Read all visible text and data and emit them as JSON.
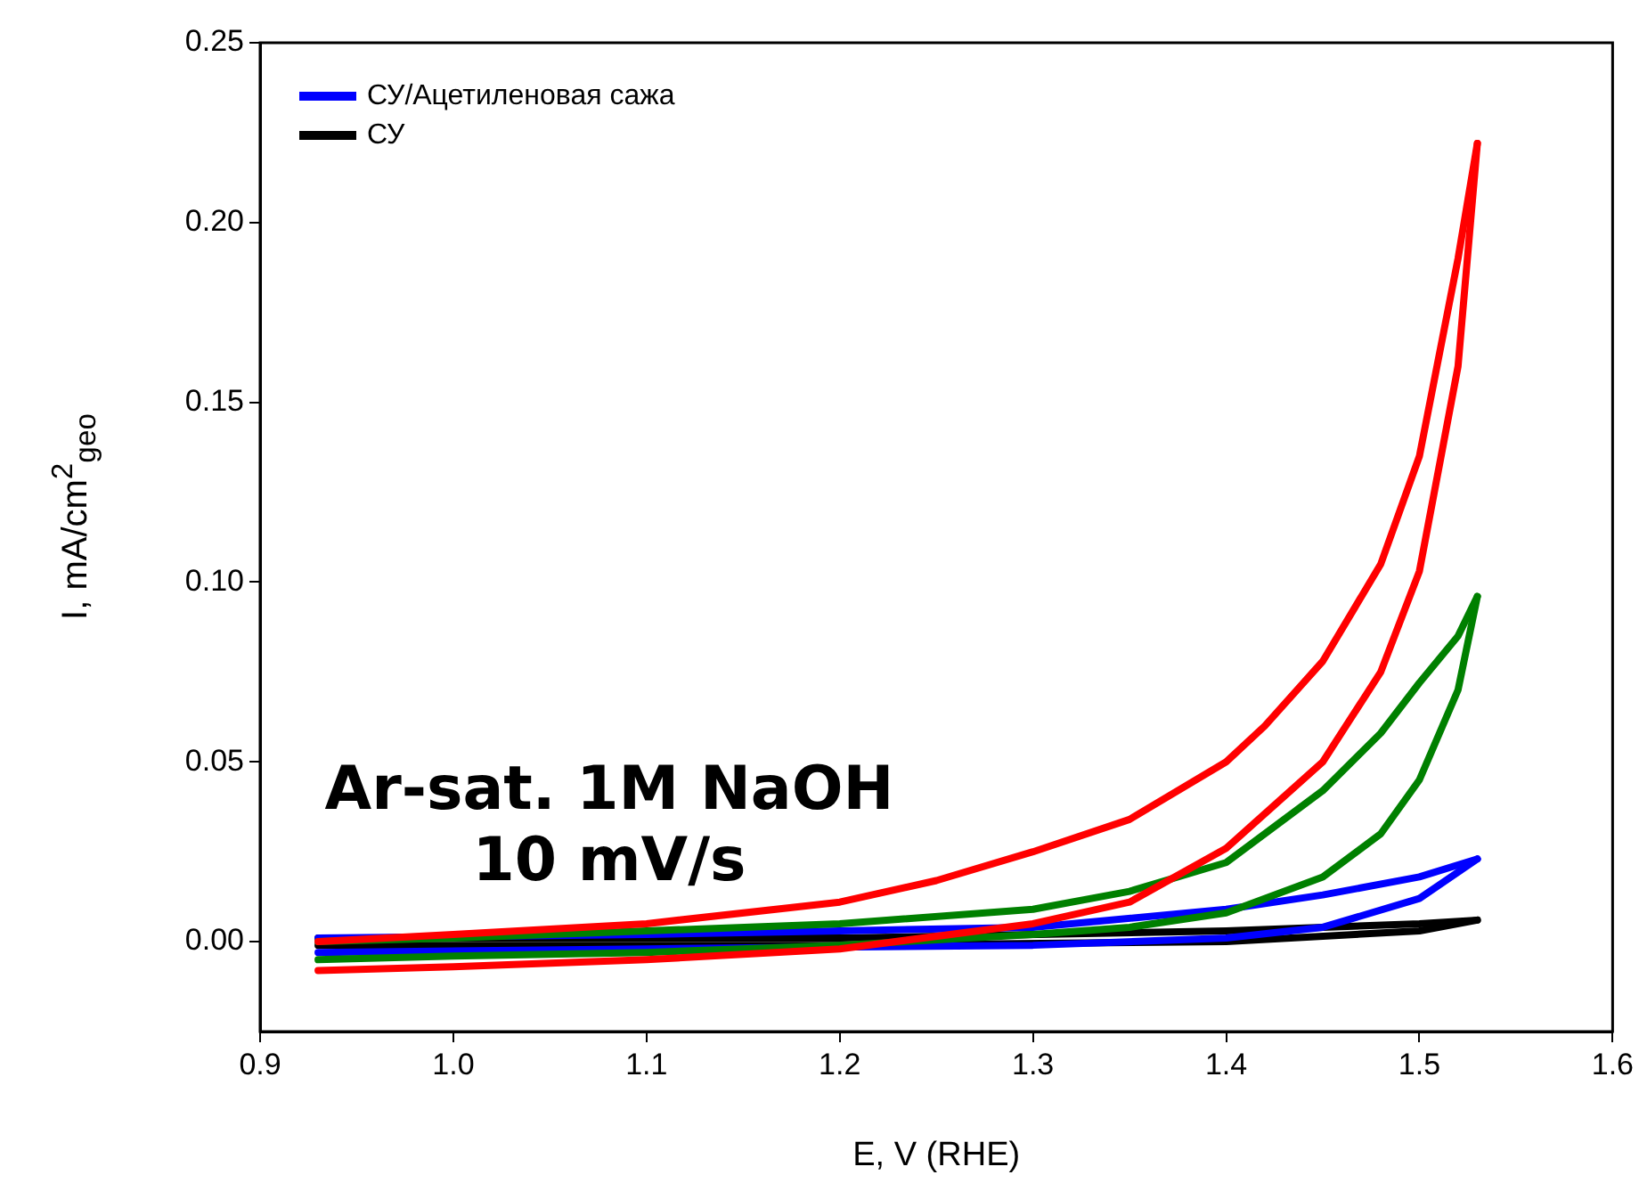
{
  "chart_data": {
    "type": "line",
    "xlabel": "E, V (RHE)",
    "ylabel": "I, mA/cm$^{2}$$_{geo}$",
    "xlim": [
      0.9,
      1.6
    ],
    "xticks": [
      0.9,
      {
        "value": 1,
        "label": "1.0"
      },
      1.1,
      1.2,
      1.3,
      1.4,
      1.5,
      1.6
    ],
    "ylim": [
      -0.025,
      0.25
    ],
    "yticks": [
      {
        "value": 0,
        "label": "0.00"
      },
      {
        "value": 0.05,
        "label": "0.05"
      },
      {
        "value": 0.1,
        "label": "0.10"
      },
      {
        "value": 0.15,
        "label": "0.15"
      },
      {
        "value": 0.2,
        "label": "0.20"
      },
      {
        "value": 0.25,
        "label": "0.25"
      }
    ],
    "grid": false,
    "legend": "top left",
    "marker": "none",
    "line_style": "solid",
    "annotations": [
      "Ar-sat. 1M NaOH",
      "10 mV/s"
    ],
    "series": [
      {
        "color": "#ff0000",
        "x": [
          0.93,
          1.0,
          1.1,
          1.2,
          1.3,
          1.35,
          1.4,
          1.45,
          1.48,
          1.5,
          1.52,
          1.53
        ],
        "values": [
          -0.008,
          -0.007,
          -0.005,
          -0.002,
          0.005,
          0.011,
          0.026,
          0.05,
          0.075,
          0.103,
          0.16,
          0.222
        ]
      },
      {
        "color": "#ff0000",
        "x": [
          0.93,
          1.0,
          1.1,
          1.2,
          1.25,
          1.3,
          1.35,
          1.4,
          1.42,
          1.45,
          1.48,
          1.5,
          1.52,
          1.53
        ],
        "values": [
          0.0,
          0.002,
          0.005,
          0.011,
          0.017,
          0.025,
          0.034,
          0.05,
          0.06,
          0.078,
          0.105,
          0.135,
          0.19,
          0.222
        ]
      },
      {
        "color": "#008000",
        "x": [
          0.93,
          1.0,
          1.1,
          1.2,
          1.3,
          1.35,
          1.4,
          1.45,
          1.48,
          1.5,
          1.52,
          1.53
        ],
        "values": [
          -0.005,
          -0.004,
          -0.003,
          -0.001,
          0.002,
          0.004,
          0.008,
          0.018,
          0.03,
          0.045,
          0.07,
          0.096
        ]
      },
      {
        "color": "#008000",
        "x": [
          0.93,
          1.0,
          1.1,
          1.2,
          1.3,
          1.35,
          1.4,
          1.45,
          1.48,
          1.5,
          1.52,
          1.53
        ],
        "values": [
          0.0,
          0.001,
          0.003,
          0.005,
          0.009,
          0.014,
          0.022,
          0.042,
          0.058,
          0.072,
          0.085,
          0.096
        ]
      },
      {
        "name": "СУ/Ацетиленовая сажа",
        "color": "#0000ff",
        "x": [
          0.93,
          1.1,
          1.3,
          1.4,
          1.45,
          1.5,
          1.53
        ],
        "values": [
          -0.003,
          -0.002,
          -0.001,
          0.001,
          0.004,
          0.012,
          0.023
        ]
      },
      {
        "color": "#0000ff",
        "x": [
          0.93,
          1.1,
          1.2,
          1.3,
          1.4,
          1.45,
          1.5,
          1.53
        ],
        "values": [
          0.001,
          0.002,
          0.003,
          0.004,
          0.009,
          0.013,
          0.018,
          0.023
        ]
      },
      {
        "name": "СУ",
        "color": "#000000",
        "x": [
          0.93,
          1.2,
          1.4,
          1.5,
          1.53
        ],
        "values": [
          -0.001,
          -0.001,
          0.0,
          0.003,
          0.006
        ]
      },
      {
        "color": "#000000",
        "x": [
          0.93,
          1.2,
          1.4,
          1.5,
          1.53
        ],
        "values": [
          0.001,
          0.001,
          0.003,
          0.005,
          0.006
        ]
      }
    ]
  }
}
